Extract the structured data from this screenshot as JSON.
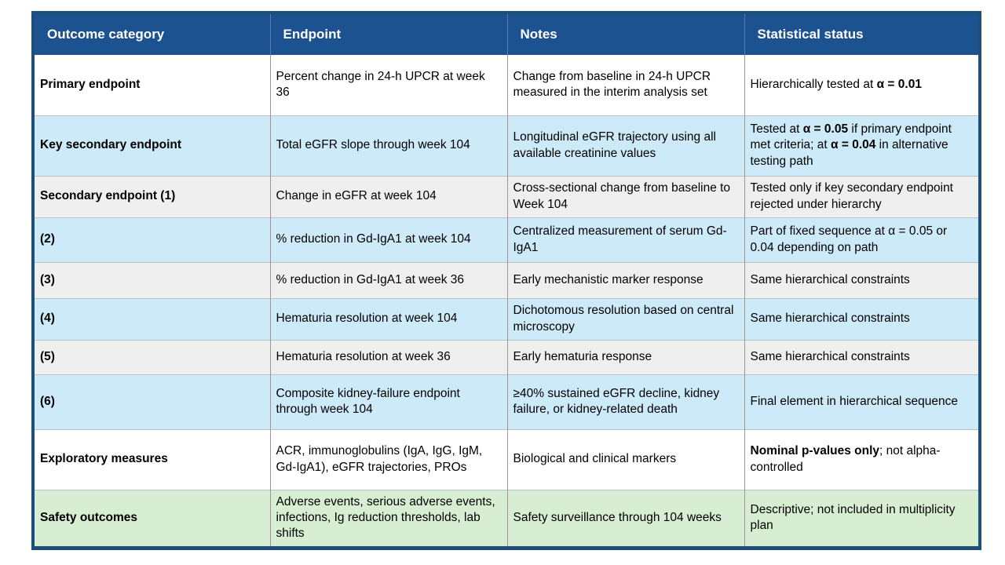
{
  "colors": {
    "header_bg": "#1d5291",
    "header_text": "#ffffff",
    "header_divider": "#4c80ba",
    "outer_border": "#1e4e7c",
    "grid_vertical": "#989898",
    "grid_horizontal": "#b9c0c6",
    "cell_text": "#000000",
    "row_white": "#ffffff",
    "row_blue": "#cdeaf9",
    "row_gray": "#efefef",
    "row_green": "#d8eed2"
  },
  "table": {
    "headers": [
      {
        "label": "Outcome category"
      },
      {
        "label": "Endpoint"
      },
      {
        "label": "Notes"
      },
      {
        "label": "Statistical status"
      }
    ],
    "rows": [
      {
        "bg": "white",
        "min_h": 77,
        "cells": {
          "category": [
            {
              "t": "Primary endpoint",
              "b": true
            }
          ],
          "endpoint": [
            {
              "t": "Percent change in 24-h UPCR at week 36",
              "b": false
            }
          ],
          "notes": [
            {
              "t": "Change from baseline in 24-h UPCR measured in the interim analysis set",
              "b": false
            }
          ],
          "status": [
            {
              "t": "Hierarchically tested at ",
              "b": false
            },
            {
              "t": "α = 0.01",
              "b": true
            }
          ]
        }
      },
      {
        "bg": "blue",
        "min_h": 77,
        "cells": {
          "category": [
            {
              "t": "Key secondary endpoint",
              "b": true
            }
          ],
          "endpoint": [
            {
              "t": "Total eGFR slope through week 104",
              "b": false
            }
          ],
          "notes": [
            {
              "t": "Longitudinal eGFR trajectory using all available creatinine values",
              "b": false
            }
          ],
          "status": [
            {
              "t": "Tested at ",
              "b": false
            },
            {
              "t": "α = 0.05",
              "b": true
            },
            {
              "t": " if primary endpoint met criteria; at ",
              "b": false
            },
            {
              "t": "α = 0.04",
              "b": true
            },
            {
              "t": " in alternative testing path",
              "b": false
            }
          ]
        }
      },
      {
        "bg": "gray",
        "min_h": 53,
        "cells": {
          "category": [
            {
              "t": "Secondary endpoint (1)",
              "b": true
            }
          ],
          "endpoint": [
            {
              "t": "Change in eGFR at week 104",
              "b": false
            }
          ],
          "notes": [
            {
              "t": "Cross-sectional change from baseline to Week 104",
              "b": false
            }
          ],
          "status": [
            {
              "t": "Tested only if key secondary endpoint rejected under hierarchy",
              "b": false
            }
          ]
        }
      },
      {
        "bg": "blue",
        "min_h": 57,
        "cells": {
          "category": [
            {
              "t": "(2)",
              "b": true
            }
          ],
          "endpoint": [
            {
              "t": "% reduction in Gd-IgA1 at week 104",
              "b": false
            }
          ],
          "notes": [
            {
              "t": "Centralized measurement of serum Gd-IgA1",
              "b": false
            }
          ],
          "status": [
            {
              "t": "Part of fixed sequence at α = 0.05 or 0.04 depending on path",
              "b": false
            }
          ]
        }
      },
      {
        "bg": "gray",
        "min_h": 46,
        "cells": {
          "category": [
            {
              "t": "(3)",
              "b": true
            }
          ],
          "endpoint": [
            {
              "t": "% reduction in Gd-IgA1 at week 36",
              "b": false
            }
          ],
          "notes": [
            {
              "t": "Early mechanistic marker response",
              "b": false
            }
          ],
          "status": [
            {
              "t": "Same hierarchical constraints",
              "b": false
            }
          ]
        }
      },
      {
        "bg": "blue",
        "min_h": 53,
        "cells": {
          "category": [
            {
              "t": "(4)",
              "b": true
            }
          ],
          "endpoint": [
            {
              "t": "Hematuria resolution at week 104",
              "b": false
            }
          ],
          "notes": [
            {
              "t": "Dichotomous resolution based on central microscopy",
              "b": false
            }
          ],
          "status": [
            {
              "t": "Same hierarchical constraints",
              "b": false
            }
          ]
        }
      },
      {
        "bg": "gray",
        "min_h": 44,
        "cells": {
          "category": [
            {
              "t": "(5)",
              "b": true
            }
          ],
          "endpoint": [
            {
              "t": "Hematuria resolution at week 36",
              "b": false
            }
          ],
          "notes": [
            {
              "t": "Early hematuria response",
              "b": false
            }
          ],
          "status": [
            {
              "t": "Same hierarchical constraints",
              "b": false
            }
          ]
        }
      },
      {
        "bg": "blue",
        "min_h": 70,
        "cells": {
          "category": [
            {
              "t": "(6)",
              "b": true
            }
          ],
          "endpoint": [
            {
              "t": "Composite kidney-failure endpoint through week 104",
              "b": false
            }
          ],
          "notes": [
            {
              "t": "≥40% sustained eGFR decline, kidney failure, or kidney-related death",
              "b": false
            }
          ],
          "status": [
            {
              "t": "Final element in hierarchical sequence",
              "b": false
            }
          ]
        }
      },
      {
        "bg": "white",
        "min_h": 77,
        "cells": {
          "category": [
            {
              "t": "Exploratory measures",
              "b": true
            }
          ],
          "endpoint": [
            {
              "t": "ACR, immunoglobulins (IgA, IgG, IgM, Gd-IgA1), eGFR trajectories, PROs",
              "b": false
            }
          ],
          "notes": [
            {
              "t": "Biological and clinical markers",
              "b": false
            }
          ],
          "status": [
            {
              "t": "Nominal p-values only",
              "b": true
            },
            {
              "t": "; not alpha-controlled",
              "b": false
            }
          ]
        }
      },
      {
        "bg": "green",
        "min_h": 74,
        "cells": {
          "category": [
            {
              "t": "Safety outcomes",
              "b": true
            }
          ],
          "endpoint": [
            {
              "t": "Adverse events, serious adverse events, infections, Ig reduction thresholds, lab shifts",
              "b": false
            }
          ],
          "notes": [
            {
              "t": "Safety surveillance through 104 weeks",
              "b": false
            }
          ],
          "status": [
            {
              "t": "Descriptive; not included in multiplicity plan",
              "b": false
            }
          ]
        }
      }
    ]
  }
}
